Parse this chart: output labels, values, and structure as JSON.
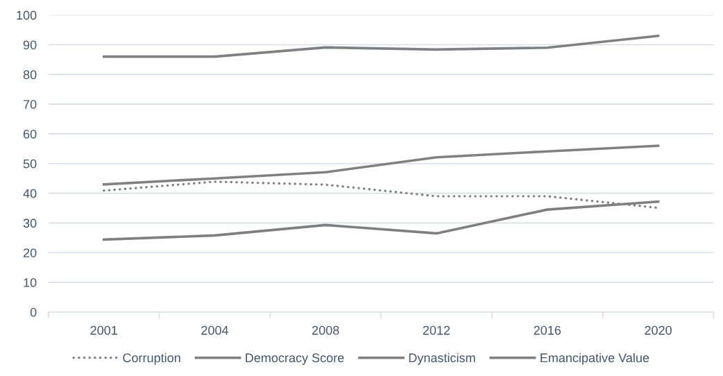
{
  "chart_data": {
    "type": "line",
    "categories": [
      "2001",
      "2004",
      "2008",
      "2012",
      "2016",
      "2020"
    ],
    "series": [
      {
        "name": "Corruption",
        "color": "#808080",
        "line_style": "dotted",
        "values": [
          40.9,
          43.9,
          42.9,
          39.0,
          39.0,
          35.1
        ]
      },
      {
        "name": "Democracy Score",
        "color": "#808080",
        "line_style": "solid",
        "values": [
          86,
          86,
          89.1,
          88.4,
          89,
          93
        ]
      },
      {
        "name": "Dynasticism",
        "color": "#7f7f7f",
        "line_style": "solid",
        "values": [
          24.4,
          25.8,
          29.3,
          26.5,
          34.5,
          37.2
        ]
      },
      {
        "name": "Emancipative Value",
        "color": "#808080",
        "line_style": "solid",
        "values": [
          43,
          45,
          47.1,
          52.1,
          54.1,
          56
        ]
      }
    ],
    "ylim": [
      0,
      100
    ],
    "yticks": [
      0,
      10,
      20,
      30,
      40,
      50,
      60,
      70,
      80,
      90,
      100
    ],
    "grid": "y",
    "legend": "bottom",
    "marker": "none"
  }
}
